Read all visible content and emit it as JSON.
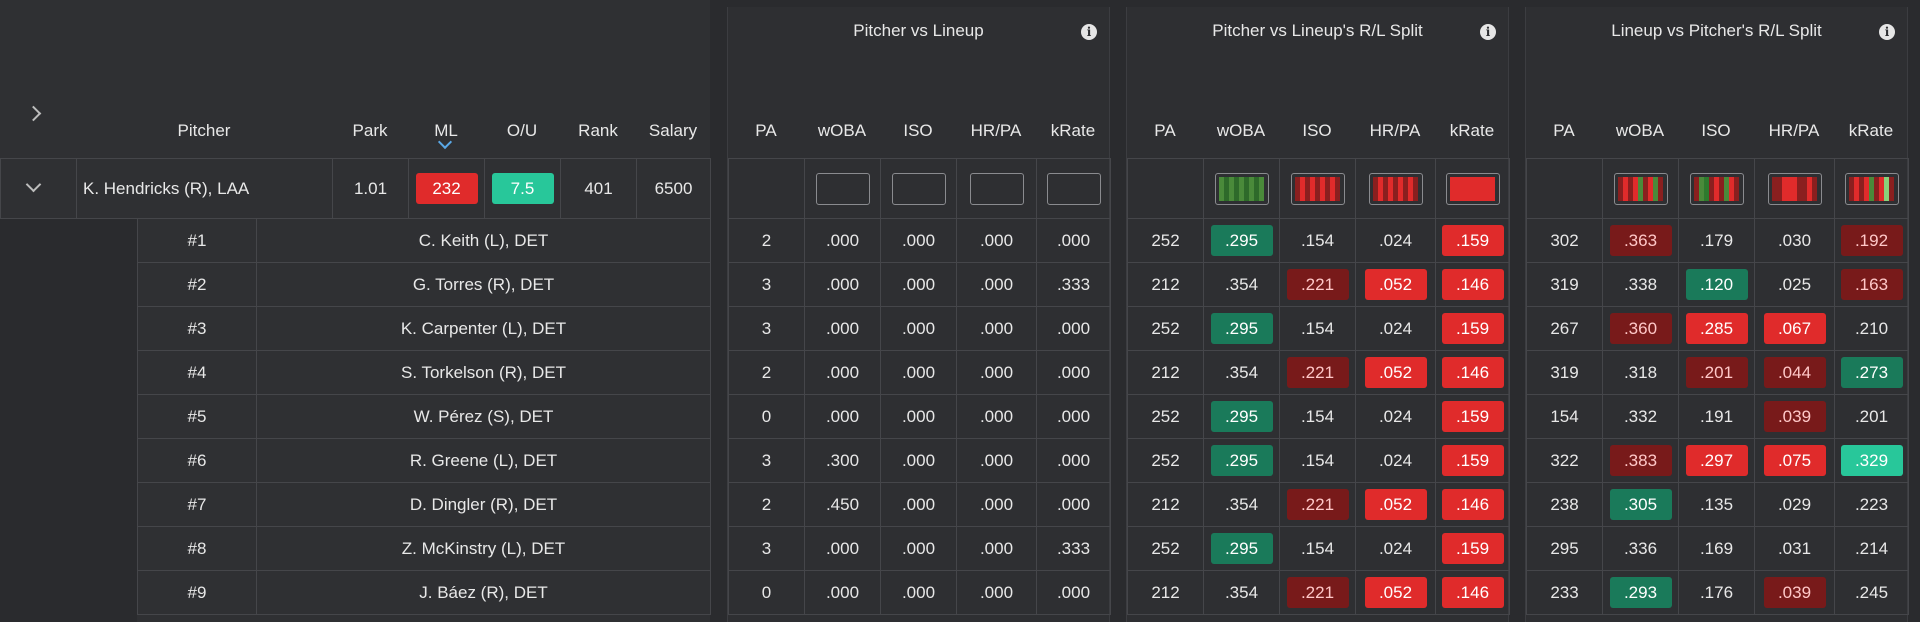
{
  "pitcher_table": {
    "headers": {
      "pitcher": "Pitcher",
      "park": "Park",
      "ml": "ML",
      "ou": "O/U",
      "rank": "Rank",
      "salary": "Salary"
    },
    "pitcher_row": {
      "name": "K. Hendricks (R), LAA",
      "park": "1.01",
      "ml": "232",
      "ou": "7.5",
      "rank": "401",
      "salary": "6500"
    },
    "lineup": [
      {
        "slot": "#1",
        "name": "C. Keith (L), DET"
      },
      {
        "slot": "#2",
        "name": "G. Torres (R), DET"
      },
      {
        "slot": "#3",
        "name": "K. Carpenter (L), DET"
      },
      {
        "slot": "#4",
        "name": "S. Torkelson (R), DET"
      },
      {
        "slot": "#5",
        "name": "W. Pérez (S), DET"
      },
      {
        "slot": "#6",
        "name": "R. Greene (L), DET"
      },
      {
        "slot": "#7",
        "name": "D. Dingler (R), DET"
      },
      {
        "slot": "#8",
        "name": "Z. McKinstry (L), DET"
      },
      {
        "slot": "#9",
        "name": "J. Báez (R), DET"
      }
    ]
  },
  "panels": [
    {
      "title": "Pitcher vs Lineup",
      "columns": [
        "PA",
        "wOBA",
        "ISO",
        "HR/PA",
        "kRate"
      ],
      "rows": [
        [
          "2",
          ".000",
          ".000",
          ".000",
          ".000"
        ],
        [
          "3",
          ".000",
          ".000",
          ".000",
          ".333"
        ],
        [
          "3",
          ".000",
          ".000",
          ".000",
          ".000"
        ],
        [
          "2",
          ".000",
          ".000",
          ".000",
          ".000"
        ],
        [
          "0",
          ".000",
          ".000",
          ".000",
          ".000"
        ],
        [
          "3",
          ".300",
          ".000",
          ".000",
          ".000"
        ],
        [
          "2",
          ".450",
          ".000",
          ".000",
          ".000"
        ],
        [
          "3",
          ".000",
          ".000",
          ".000",
          ".333"
        ],
        [
          "0",
          ".000",
          ".000",
          ".000",
          ".000"
        ]
      ],
      "colors": [
        [
          "none",
          "none",
          "none",
          "none",
          "none"
        ],
        [
          "none",
          "none",
          "none",
          "none",
          "none"
        ],
        [
          "none",
          "none",
          "none",
          "none",
          "none"
        ],
        [
          "none",
          "none",
          "none",
          "none",
          "none"
        ],
        [
          "none",
          "none",
          "none",
          "none",
          "none"
        ],
        [
          "none",
          "none",
          "none",
          "none",
          "none"
        ],
        [
          "none",
          "none",
          "none",
          "none",
          "none"
        ],
        [
          "none",
          "none",
          "none",
          "none",
          "none"
        ],
        [
          "none",
          "none",
          "none",
          "none",
          "none"
        ]
      ],
      "sparks": [
        [],
        [],
        [],
        []
      ]
    },
    {
      "title": "Pitcher vs Lineup's R/L Split",
      "columns": [
        "PA",
        "wOBA",
        "ISO",
        "HR/PA",
        "kRate"
      ],
      "rows": [
        [
          "252",
          ".295",
          ".154",
          ".024",
          ".159"
        ],
        [
          "212",
          ".354",
          ".221",
          ".052",
          ".146"
        ],
        [
          "252",
          ".295",
          ".154",
          ".024",
          ".159"
        ],
        [
          "212",
          ".354",
          ".221",
          ".052",
          ".146"
        ],
        [
          "252",
          ".295",
          ".154",
          ".024",
          ".159"
        ],
        [
          "252",
          ".295",
          ".154",
          ".024",
          ".159"
        ],
        [
          "212",
          ".354",
          ".221",
          ".052",
          ".146"
        ],
        [
          "252",
          ".295",
          ".154",
          ".024",
          ".159"
        ],
        [
          "212",
          ".354",
          ".221",
          ".052",
          ".146"
        ]
      ],
      "colors": [
        [
          "none",
          "green",
          "none",
          "none",
          "red"
        ],
        [
          "none",
          "none",
          "dred",
          "red",
          "red"
        ],
        [
          "none",
          "green",
          "none",
          "none",
          "red"
        ],
        [
          "none",
          "none",
          "dred",
          "red",
          "red"
        ],
        [
          "none",
          "green",
          "none",
          "none",
          "red"
        ],
        [
          "none",
          "green",
          "none",
          "none",
          "red"
        ],
        [
          "none",
          "none",
          "dred",
          "red",
          "red"
        ],
        [
          "none",
          "green",
          "none",
          "none",
          "red"
        ],
        [
          "none",
          "none",
          "dred",
          "red",
          "red"
        ]
      ],
      "sparks": [
        [
          "#4a8a3a",
          "#2e6a2a",
          "#4a8a3a",
          "#2e6a2a",
          "#4a8a3a",
          "#2e6a2a",
          "#4a8a3a",
          "#2e6a2a",
          "#4a8a3a"
        ],
        [
          "#8a1f1f",
          "#e02b2b",
          "#8a1f1f",
          "#e02b2b",
          "#8a1f1f",
          "#e02b2b",
          "#8a1f1f",
          "#e02b2b",
          "#8a1f1f"
        ],
        [
          "#8a1f1f",
          "#e02b2b",
          "#8a1f1f",
          "#e02b2b",
          "#8a1f1f",
          "#e02b2b",
          "#8a1f1f",
          "#e02b2b",
          "#8a1f1f"
        ],
        [
          "#e02b2b",
          "#e02b2b",
          "#e02b2b",
          "#e02b2b",
          "#e02b2b",
          "#e02b2b",
          "#e02b2b",
          "#e02b2b",
          "#e02b2b"
        ]
      ]
    },
    {
      "title": "Lineup vs Pitcher's R/L Split",
      "columns": [
        "PA",
        "wOBA",
        "ISO",
        "HR/PA",
        "kRate"
      ],
      "rows": [
        [
          "302",
          ".363",
          ".179",
          ".030",
          ".192"
        ],
        [
          "319",
          ".338",
          ".120",
          ".025",
          ".163"
        ],
        [
          "267",
          ".360",
          ".285",
          ".067",
          ".210"
        ],
        [
          "319",
          ".318",
          ".201",
          ".044",
          ".273"
        ],
        [
          "154",
          ".332",
          ".191",
          ".039",
          ".201"
        ],
        [
          "322",
          ".383",
          ".297",
          ".075",
          ".329"
        ],
        [
          "238",
          ".305",
          ".135",
          ".029",
          ".223"
        ],
        [
          "295",
          ".336",
          ".169",
          ".031",
          ".214"
        ],
        [
          "233",
          ".293",
          ".176",
          ".039",
          ".245"
        ]
      ],
      "colors": [
        [
          "none",
          "dred",
          "none",
          "none",
          "dred"
        ],
        [
          "none",
          "none",
          "green",
          "none",
          "dred"
        ],
        [
          "none",
          "dred",
          "red",
          "red",
          "none"
        ],
        [
          "none",
          "none",
          "dred",
          "dred",
          "green"
        ],
        [
          "none",
          "none",
          "none",
          "dred",
          "none"
        ],
        [
          "none",
          "dred",
          "red",
          "red",
          "teal"
        ],
        [
          "none",
          "green",
          "none",
          "none",
          "none"
        ],
        [
          "none",
          "none",
          "none",
          "none",
          "none"
        ],
        [
          "none",
          "green",
          "none",
          "dred",
          "none"
        ]
      ],
      "sparks": [
        [
          "#8a1f1f",
          "#e02b2b",
          "#8a1f1f",
          "#e02b2b",
          "#4a8a3a",
          "#8a1f1f",
          "#e02b2b",
          "#4a8a3a",
          "#8a1f1f"
        ],
        [
          "#8a1f1f",
          "#4a8a3a",
          "#2e7a2e",
          "#8a1f1f",
          "#e02b2b",
          "#8a1f1f",
          "#4a8a3a",
          "#e02b2b",
          "#8a1f1f"
        ],
        [
          "#8a1f1f",
          "#8a1f1f",
          "#e02b2b",
          "#e02b2b",
          "#e02b2b",
          "#8a1f1f",
          "#8a1f1f",
          "#e02b2b",
          "#8a1f1f"
        ],
        [
          "#8a1f1f",
          "#e02b2b",
          "#8a1f1f",
          "#e02b2b",
          "#4a8a3a",
          "#8a1f1f",
          "#e02b2b",
          "#8ad17a",
          "#8a1f1f"
        ]
      ]
    }
  ],
  "colors": {
    "green": "#1a7a5a",
    "red": "#e02b2b",
    "dred": "#781a1a",
    "teal": "#28c79a",
    "accent": "#5aa8e6"
  },
  "icons": {
    "info": "info-icon",
    "expand": "chevron-right-icon",
    "collapse": "chevron-down-icon",
    "sort": "sort-desc-icon"
  }
}
